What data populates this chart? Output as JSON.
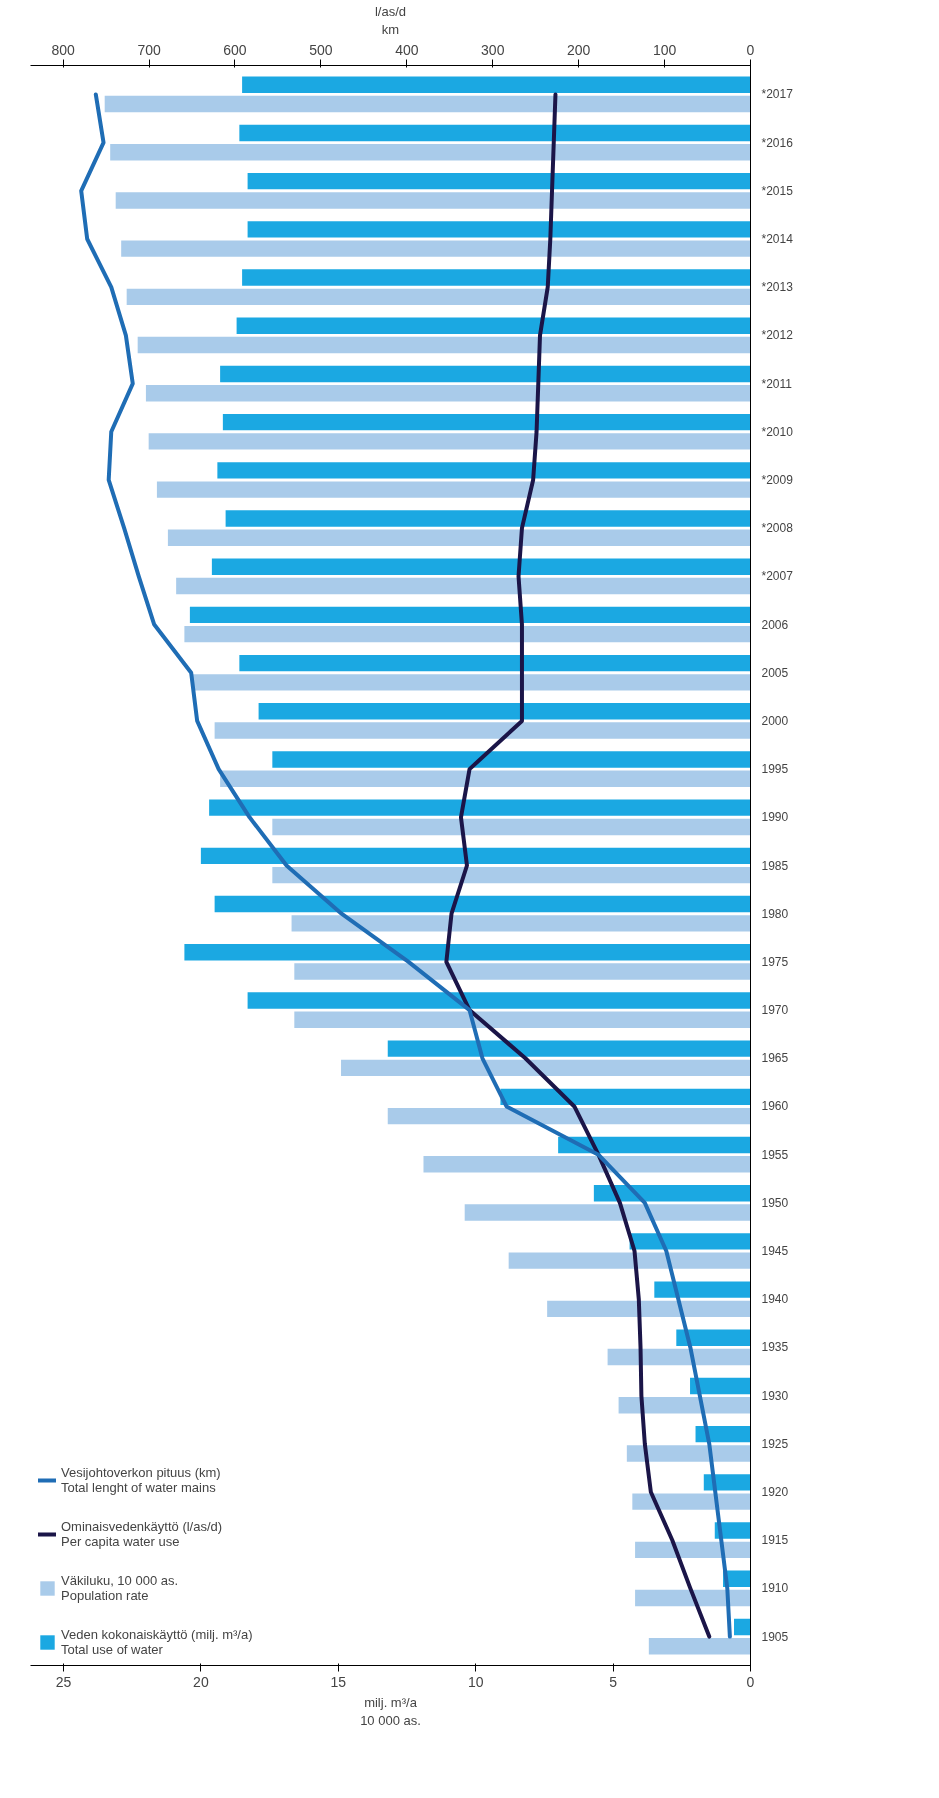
{
  "chart_data": {
    "type": "bar",
    "orientation": "horizontal",
    "categories": [
      "*2017",
      "*2016",
      "*2015",
      "*2014",
      "*2013",
      "*2012",
      "*2011",
      "*2010",
      "*2009",
      "*2008",
      "*2007",
      "2006",
      "2005",
      "2000",
      "1995",
      "1990",
      "1985",
      "1980",
      "1975",
      "1970",
      "1965",
      "1960",
      "1955",
      "1950",
      "1945",
      "1940",
      "1935",
      "1930",
      "1925",
      "1920",
      "1915",
      "1910",
      "1905"
    ],
    "xlabel": "milj. m³/a\n10 000 as.",
    "x2label": "l/as/d\nkm",
    "xlim": [
      26.2,
      0
    ],
    "xticks": [
      0,
      5,
      10,
      15,
      20,
      25
    ],
    "x2lim": [
      838,
      0
    ],
    "x2ticks": [
      0,
      100,
      200,
      300,
      400,
      500,
      600,
      700,
      800
    ],
    "series": [
      {
        "name": "Veden kokonaiskäyttö (milj. m³/a)\nTotal use of water",
        "color": "#1ba8e2",
        "values": [
          18.5,
          18.6,
          18.3,
          18.3,
          18.5,
          18.7,
          19.3,
          19.2,
          19.4,
          19.1,
          19.6,
          20.4,
          18.6,
          17.9,
          17.4,
          19.7,
          20.0,
          19.5,
          20.6,
          18.3,
          13.2,
          9.1,
          7.0,
          5.7,
          4.4,
          3.5,
          2.7,
          2.2,
          2.0,
          1.7,
          1.3,
          1.0,
          0.6
        ]
      },
      {
        "name": "Väkiluku, 10 000 as.\nPopulation rate",
        "color": "#a9cbea",
        "values": [
          23.5,
          23.3,
          23.1,
          22.9,
          22.7,
          22.3,
          22.0,
          21.9,
          21.6,
          21.2,
          20.9,
          20.6,
          20.3,
          19.5,
          19.3,
          17.4,
          17.4,
          16.7,
          16.6,
          16.6,
          14.9,
          13.2,
          11.9,
          10.4,
          8.8,
          7.4,
          5.2,
          4.8,
          4.5,
          4.3,
          4.2,
          4.2,
          3.7
        ]
      },
      {
        "name": "Ominaisvedenkäyttö (l/as/d)\nPer capita water use",
        "type": "line",
        "axis": "x2",
        "color": "#1b1548",
        "values": [
          227,
          229,
          231,
          233,
          236,
          245,
          247,
          249,
          253,
          266,
          270,
          266,
          266,
          266,
          327,
          337,
          330,
          348,
          354,
          327,
          262,
          205,
          177,
          152,
          135,
          130,
          128,
          127,
          123,
          116,
          91,
          70,
          48
        ]
      },
      {
        "name": "Vesijohtoverkon pituus (km)\nTotal lenght of water mains",
        "type": "line",
        "axis": "x2",
        "color": "#1f6db5",
        "values": [
          762,
          753,
          779,
          772,
          744,
          727,
          719,
          744,
          747,
          729,
          712,
          694,
          651,
          644,
          619,
          583,
          540,
          476,
          398,
          327,
          312,
          284,
          177,
          123,
          98,
          84,
          70,
          59,
          48,
          41,
          34,
          27,
          24
        ]
      }
    ],
    "grid": false,
    "legend": "bottom left"
  }
}
